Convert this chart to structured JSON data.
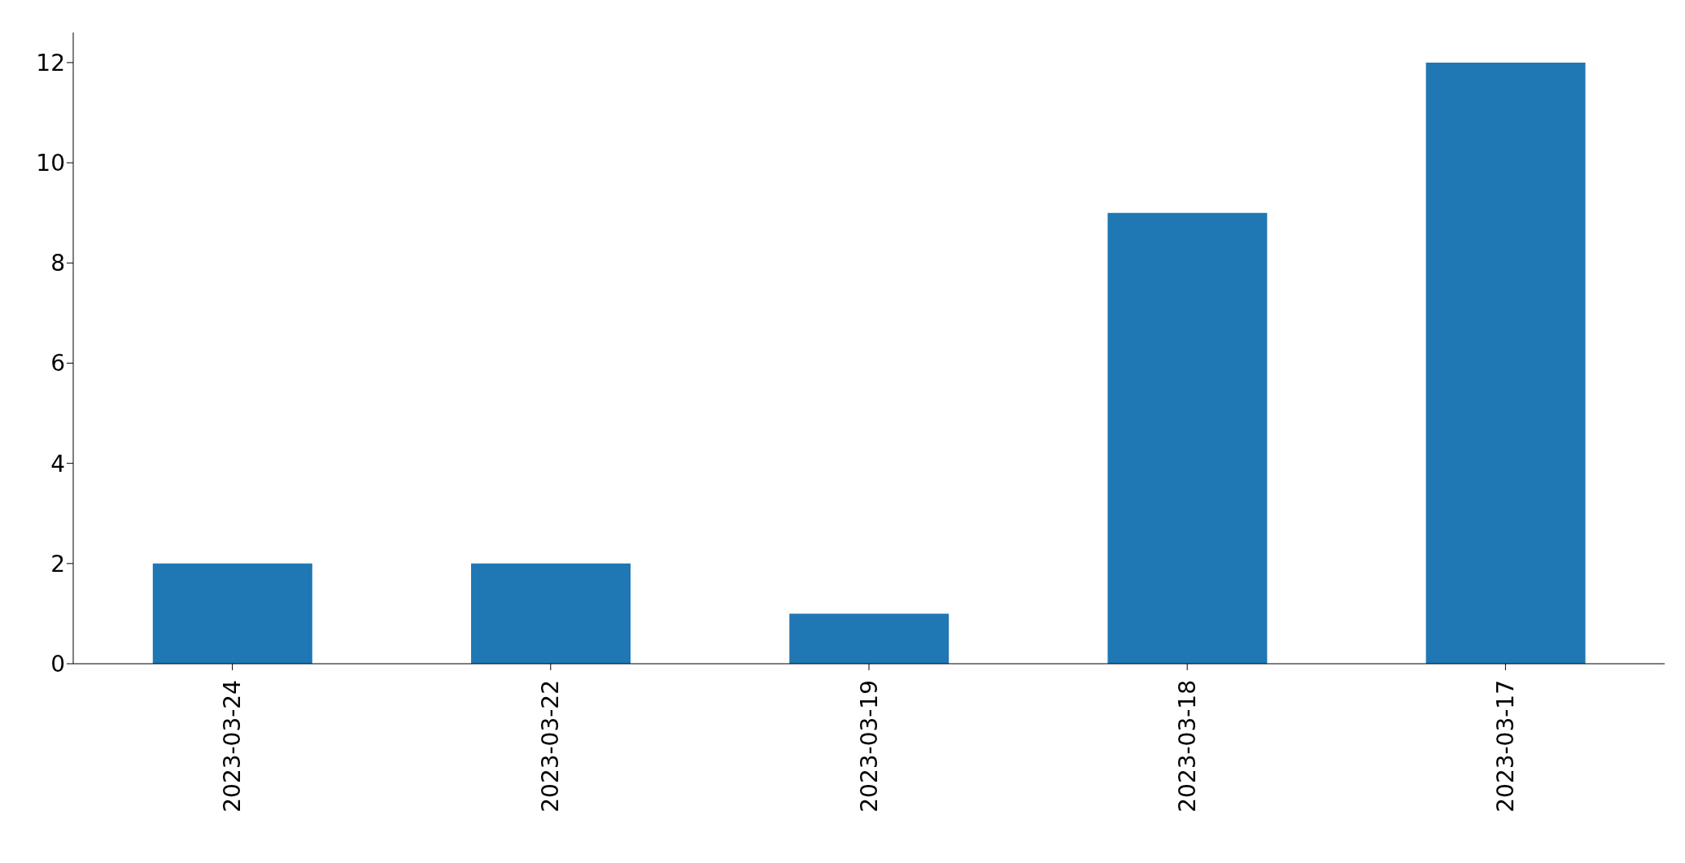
{
  "chart_data": {
    "type": "bar",
    "categories": [
      "2023-03-24",
      "2023-03-22",
      "2023-03-19",
      "2023-03-18",
      "2023-03-17"
    ],
    "values": [
      2,
      2,
      1,
      9,
      12
    ],
    "color": "#1f77b4",
    "ylim": [
      0,
      12.6
    ],
    "yticks": [
      0,
      2,
      4,
      6,
      8,
      10,
      12
    ],
    "grid": false,
    "legend": false
  }
}
